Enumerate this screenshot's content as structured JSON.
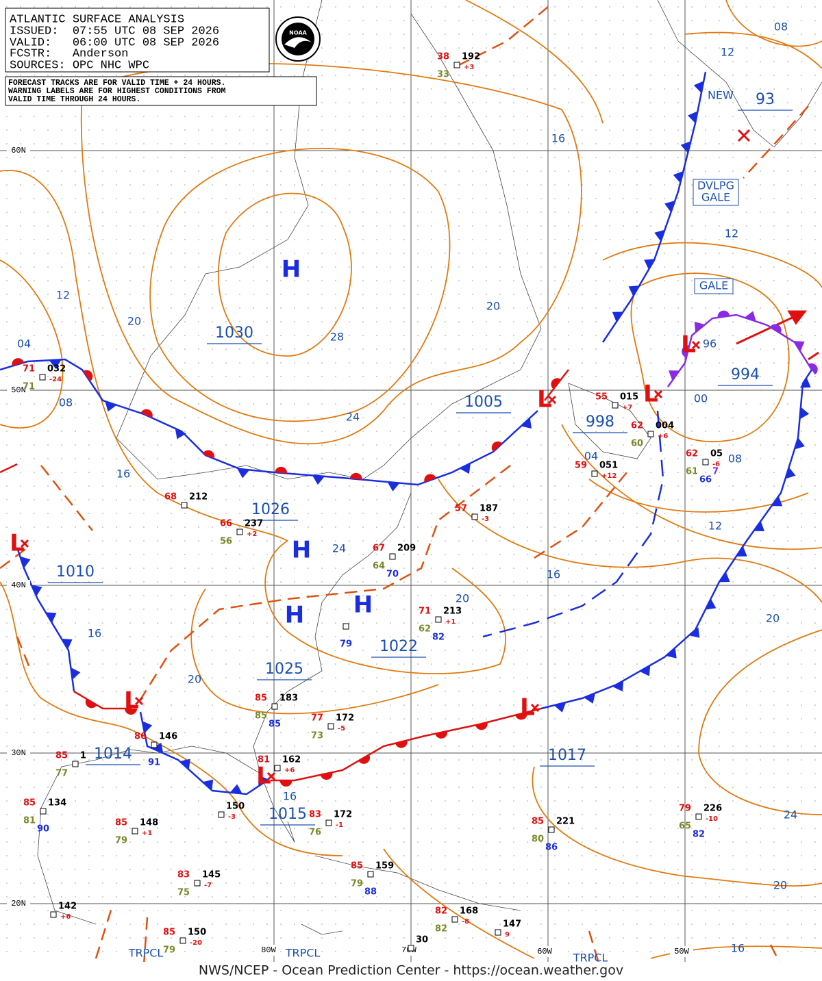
{
  "header": {
    "lines": [
      "ATLANTIC SURFACE ANALYSIS",
      "ISSUED:  07:55 UTC 08 SEP 2026",
      "VALID:   06:00 UTC 08 SEP 2026",
      "FCSTR:   Anderson",
      "SOURCES: OPC NHC WPC"
    ],
    "logo": "NOAA",
    "notice": [
      "FORECAST TRACKS ARE FOR VALID TIME + 24 HOURS.",
      "WARNING LABELS ARE FOR HIGHEST CONDITIONS FROM",
      "VALID TIME THROUGH 24 HOURS."
    ]
  },
  "grid_labels": [
    "60N",
    "50N",
    "40N",
    "30N",
    "20N",
    "80W",
    "70W",
    "60W",
    "50W"
  ],
  "highs": [
    "H",
    "H",
    "H",
    "H"
  ],
  "lows": [
    "L",
    "L",
    "L",
    "L",
    "L",
    "L",
    "L"
  ],
  "center_pressures": [
    "1030",
    "1026",
    "1025",
    "1022",
    "1005",
    "998",
    "994",
    "1010",
    "1014",
    "1015",
    "1017",
    "93"
  ],
  "isobar_labels": [
    "12",
    "08",
    "16",
    "12",
    "12",
    "20",
    "04",
    "28",
    "20",
    "96",
    "00",
    "08",
    "24",
    "16",
    "04",
    "08",
    "12",
    "24",
    "16",
    "16",
    "20",
    "20",
    "20",
    "16",
    "24",
    "20",
    "16"
  ],
  "warnings": [
    "NEW",
    "DVLPG",
    "GALE",
    "GALE",
    "TRPCL",
    "TRPCL",
    "TRPCL"
  ],
  "stations": [
    {
      "temp": "38",
      "pressure": "192",
      "dew": "33",
      "tend": "+3"
    },
    {
      "temp": "71",
      "pressure": "032",
      "dew": "71",
      "tend": "-24"
    },
    {
      "temp": "55",
      "pressure": "015",
      "tend": "+7"
    },
    {
      "temp": "62",
      "pressure": "004",
      "dew": "60",
      "tend": "+6"
    },
    {
      "temp": "59",
      "pressure": "051",
      "tend": "+12"
    },
    {
      "temp": "62",
      "pressure": "05",
      "dew": "61",
      "tend": "-6",
      "extra": "7",
      "vis": "66"
    },
    {
      "temp": "68",
      "pressure": "212"
    },
    {
      "temp": "66",
      "pressure": "237",
      "dew": "56",
      "tend": "+2"
    },
    {
      "temp": "57",
      "pressure": "187",
      "tend": "-3"
    },
    {
      "temp": "67",
      "pressure": "209",
      "dew": "64",
      "vis": "70"
    },
    {
      "temp": "71",
      "pressure": "213",
      "dew": "62",
      "tend": "+1",
      "vis": "82"
    },
    {
      "vis": "79"
    },
    {
      "temp": "85",
      "pressure": "183",
      "dew": "85",
      "vis": "85"
    },
    {
      "temp": "77",
      "pressure": "172",
      "dew": "73",
      "tend": "-5"
    },
    {
      "temp": "81",
      "pressure": "162",
      "tend": "+6"
    },
    {
      "temp": "86",
      "pressure": "146",
      "vis": "91"
    },
    {
      "temp": "85",
      "pressure": "1",
      "dew": "77"
    },
    {
      "temp": "85",
      "pressure": "134",
      "dew": "81",
      "vis": "90"
    },
    {
      "temp": "85",
      "pressure": "148",
      "dew": "79",
      "tend": "+1"
    },
    {
      "pressure": "150",
      "tend": "-3"
    },
    {
      "temp": "83",
      "pressure": "172",
      "dew": "76",
      "tend": "-1"
    },
    {
      "temp": "85",
      "pressure": "159",
      "dew": "79",
      "vis": "88"
    },
    {
      "temp": "83",
      "pressure": "145",
      "dew": "75",
      "tend": "-7"
    },
    {
      "temp": "85",
      "pressure": "221",
      "dew": "80",
      "vis": "86"
    },
    {
      "temp": "79",
      "pressure": "226",
      "dew": "65",
      "tend": "-10",
      "vis": "82"
    },
    {
      "pressure": "142",
      "tend": "+6"
    },
    {
      "temp": "82",
      "pressure": "168",
      "dew": "82",
      "tend": "-8"
    },
    {
      "pressure": "147",
      "tend": "9"
    },
    {
      "temp": "85",
      "pressure": "150",
      "dew": "79",
      "tend": "-20"
    },
    {
      "pressure": "30"
    }
  ],
  "footer": "NWS/NCEP - Ocean Prediction Center - https://ocean.weather.gov"
}
